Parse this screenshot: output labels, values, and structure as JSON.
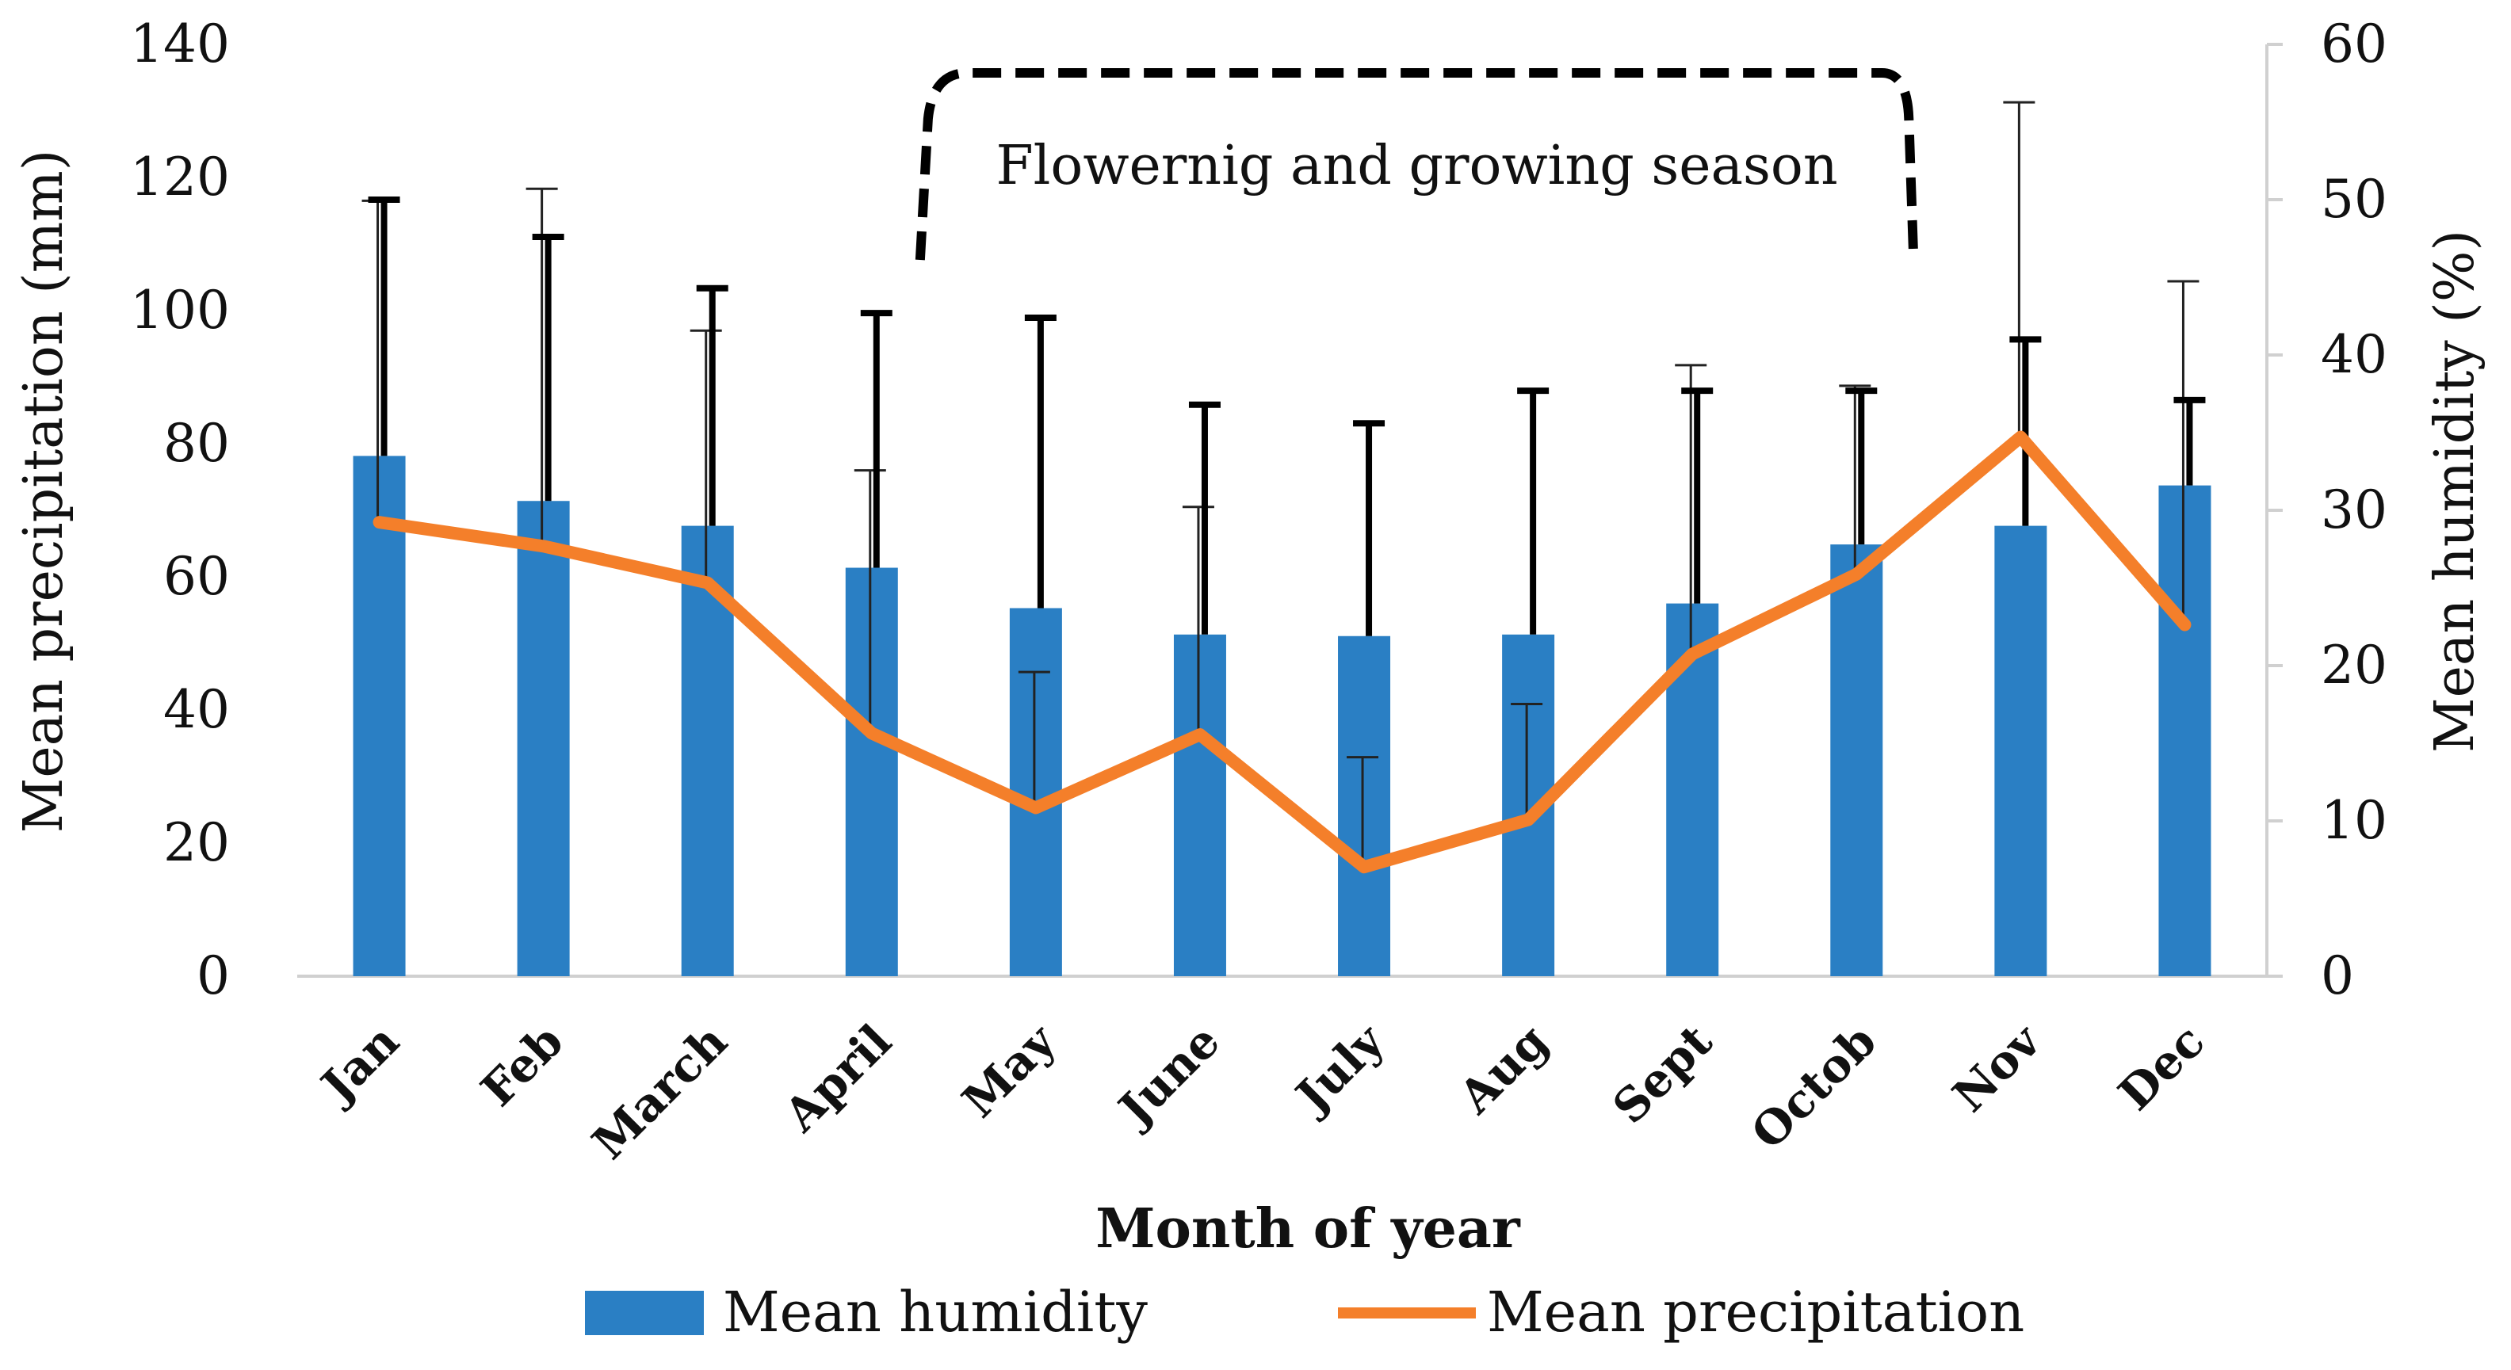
{
  "chart_data": {
    "type": "bar",
    "categories": [
      "Jan",
      "Feb",
      "March",
      "April",
      "May",
      "June",
      "July",
      "Aug",
      "Sept",
      "Octob",
      "Nov",
      "Dec"
    ],
    "xlabel": "Month of year",
    "y_left": {
      "label": "Mean precipitation (mm)",
      "ylim": [
        0,
        140
      ],
      "ticks": [
        "0",
        "20",
        "40",
        "60",
        "80",
        "100",
        "120",
        "140"
      ]
    },
    "y_right": {
      "label": "Mean humidity (%)",
      "ylim": [
        0,
        60
      ],
      "ticks": [
        "0",
        "10",
        "20",
        "30",
        "40",
        "50",
        "60"
      ]
    },
    "series": [
      {
        "name": "Mean humidity",
        "type": "bar",
        "axis": "right",
        "color": "#2a7fc4",
        "values": [
          33.5,
          30.6,
          29.0,
          26.3,
          23.7,
          22.0,
          21.9,
          22.0,
          24.0,
          27.8,
          29.0,
          31.6
        ],
        "error_upper": [
          50.0,
          47.6,
          44.3,
          42.7,
          42.4,
          36.8,
          35.6,
          37.7,
          37.7,
          37.7,
          41.0,
          37.1
        ]
      },
      {
        "name": "Mean precipitation",
        "type": "line",
        "axis": "left",
        "color": "#f47f2a",
        "values": [
          68.2,
          64.6,
          59.1,
          36.5,
          25.3,
          36.3,
          16.4,
          23.5,
          48.4,
          60.4,
          81.0,
          52.8
        ],
        "error_upper": [
          116.5,
          118.3,
          97.0,
          76.0,
          45.7,
          70.5,
          32.9,
          40.9,
          91.8,
          88.7,
          131.3,
          104.4
        ]
      }
    ],
    "annotation": {
      "text": "Flowernig and growing season",
      "from_category": "May",
      "to_category": "Octob"
    },
    "legend": {
      "position": "bottom",
      "items": [
        "Mean humidity",
        "Mean precipitation"
      ]
    },
    "grid": false
  }
}
